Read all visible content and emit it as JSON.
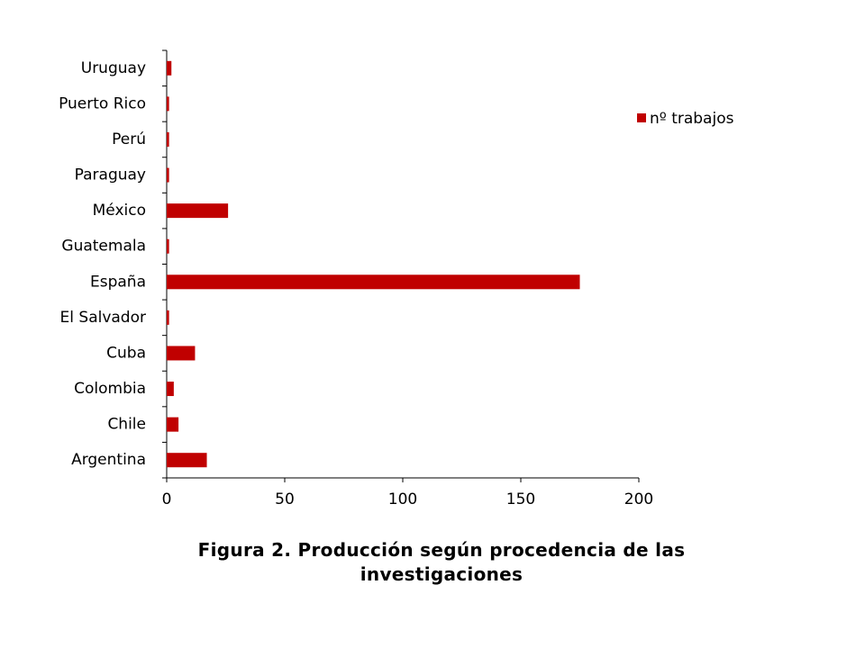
{
  "chart_data": {
    "type": "bar",
    "orientation": "horizontal",
    "title": "Figura 2. Producción según procedencia de las investigaciones",
    "categories": [
      "Argentina",
      "Chile",
      "Colombia",
      "Cuba",
      "El Salvador",
      "España",
      "Guatemala",
      "México",
      "Paraguay",
      "Perú",
      "Puerto Rico",
      "Uruguay"
    ],
    "series": [
      {
        "name": "nº trabajos",
        "color": "#c00000",
        "values": [
          17,
          5,
          3,
          12,
          1,
          175,
          1,
          26,
          1,
          1,
          1,
          2
        ]
      }
    ],
    "xlim": [
      0,
      200
    ],
    "xticks": [
      0,
      50,
      100,
      150,
      200
    ],
    "grid": false,
    "legend": "right"
  }
}
